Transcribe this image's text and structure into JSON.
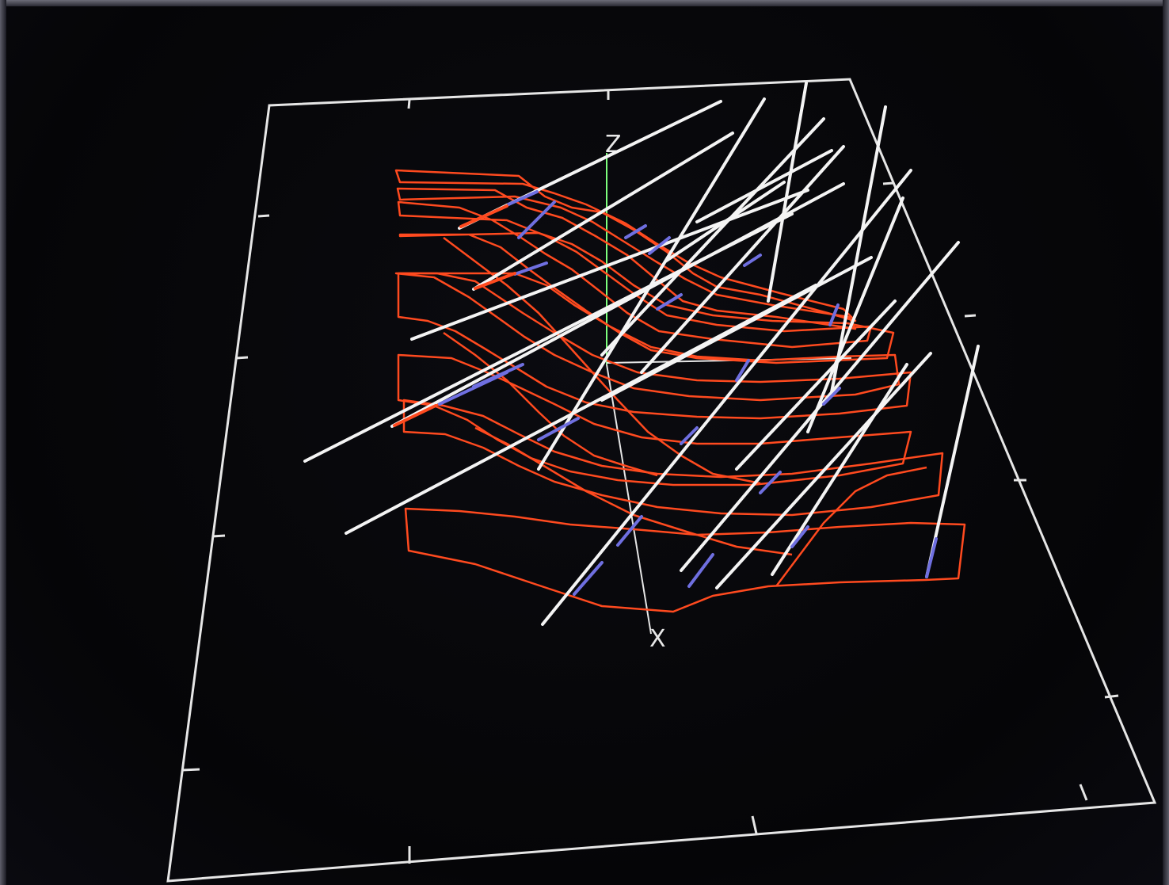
{
  "scene": {
    "axis_labels": {
      "z": "Z",
      "x": "X"
    },
    "colors": {
      "background": "#050507",
      "frame": "#e6e6e6",
      "contour": "#ff4a1f",
      "ray": "#f4f4f4",
      "ray_inside": "#6f6fe0",
      "z_axis": "#7dff7d"
    }
  }
}
